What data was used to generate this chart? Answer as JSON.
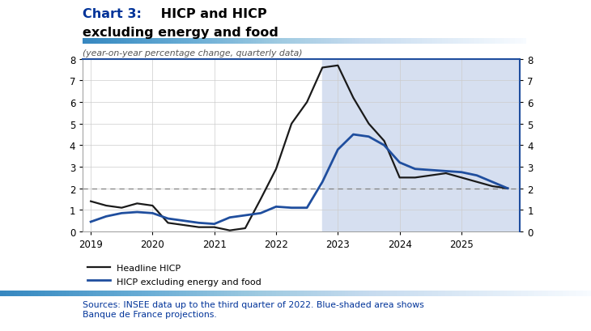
{
  "title_bold": "Chart 3:",
  "title_rest": " HICP and HICP",
  "title_line2": "excluding energy and food",
  "subtitle": "(year-on-year percentage change, quarterly data)",
  "source_text": "Sources: INSEE data up to the third quarter of 2022. Blue-shaded area shows\nBanque de France projections.",
  "ylim": [
    0,
    8
  ],
  "yticks": [
    0,
    1,
    2,
    3,
    4,
    5,
    6,
    7,
    8
  ],
  "projection_start_x": 2022.75,
  "dashed_line_y": 2.0,
  "headline_color": "#1a1a1a",
  "hicp_ex_color": "#1f4e9e",
  "shade_color": "#d6dff0",
  "title_color_bold": "#003399",
  "source_color": "#003399",
  "x_headline": [
    2019.0,
    2019.25,
    2019.5,
    2019.75,
    2020.0,
    2020.25,
    2020.5,
    2020.75,
    2021.0,
    2021.25,
    2021.5,
    2021.75,
    2022.0,
    2022.25,
    2022.5,
    2022.75,
    2023.0,
    2023.25,
    2023.5,
    2023.75,
    2024.0,
    2024.25,
    2024.5,
    2024.75,
    2025.0,
    2025.25,
    2025.5,
    2025.75
  ],
  "y_headline": [
    1.4,
    1.2,
    1.1,
    1.3,
    1.2,
    0.4,
    0.3,
    0.2,
    0.2,
    0.05,
    0.15,
    1.5,
    2.9,
    5.0,
    6.0,
    7.6,
    7.7,
    6.2,
    5.0,
    4.2,
    2.5,
    2.5,
    2.6,
    2.7,
    2.5,
    2.3,
    2.1,
    2.0
  ],
  "x_hicp_ex": [
    2019.0,
    2019.25,
    2019.5,
    2019.75,
    2020.0,
    2020.25,
    2020.5,
    2020.75,
    2021.0,
    2021.25,
    2021.5,
    2021.75,
    2022.0,
    2022.25,
    2022.5,
    2022.75,
    2023.0,
    2023.25,
    2023.5,
    2023.75,
    2024.0,
    2024.25,
    2024.5,
    2024.75,
    2025.0,
    2025.25,
    2025.5,
    2025.75
  ],
  "y_hicp_ex": [
    0.45,
    0.7,
    0.85,
    0.9,
    0.85,
    0.6,
    0.5,
    0.4,
    0.35,
    0.65,
    0.75,
    0.85,
    1.15,
    1.1,
    1.1,
    2.3,
    3.8,
    4.5,
    4.4,
    4.0,
    3.2,
    2.9,
    2.85,
    2.8,
    2.75,
    2.6,
    2.3,
    2.0
  ],
  "xlim": [
    2018.87,
    2025.95
  ],
  "xticks": [
    2019,
    2020,
    2021,
    2022,
    2023,
    2024,
    2025
  ],
  "xticklabels": [
    "2019",
    "2020",
    "2021",
    "2022",
    "2023",
    "2024",
    "2025"
  ]
}
